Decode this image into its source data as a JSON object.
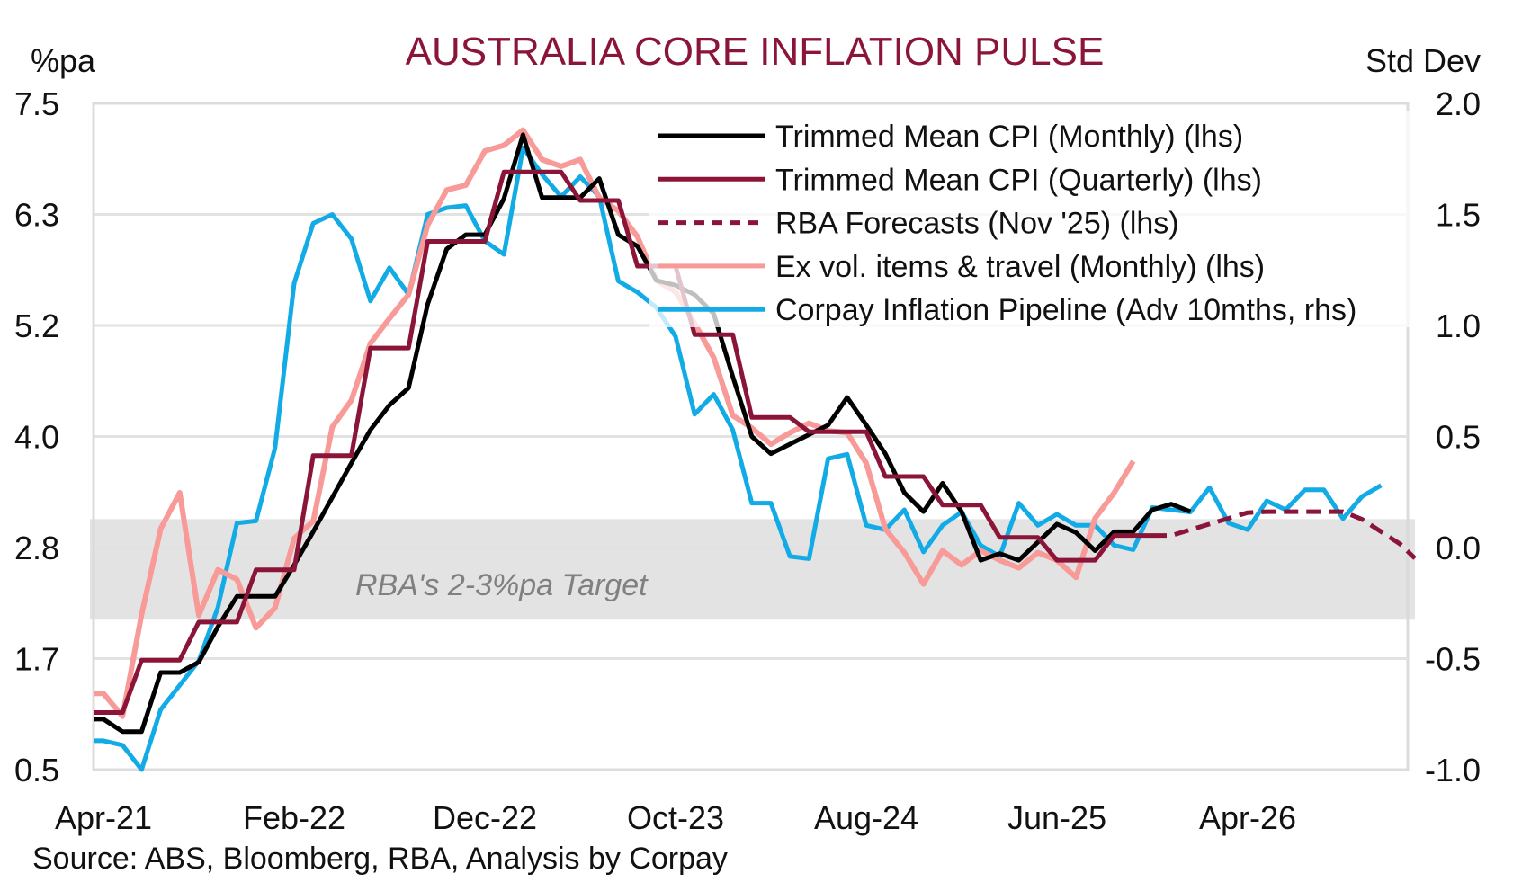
{
  "chart_data": {
    "type": "line",
    "title": "AUSTRALIA CORE INFLATION PULSE",
    "ylabel_left": "%pa",
    "ylabel_right": "Std Dev",
    "source": "Source: ABS, Bloomberg, RBA, Analysis by Corpay",
    "band_label": "RBA's 2-3%pa Target",
    "band": {
      "from": 2.0,
      "to": 3.0,
      "axis": "lhs"
    },
    "ylim_left": [
      0.5,
      7.5
    ],
    "ylim_right": [
      -1.0,
      2.0
    ],
    "yticks_left": [
      "7.5",
      "6.3",
      "5.2",
      "4.0",
      "2.8",
      "1.7",
      "0.5"
    ],
    "yticks_right": [
      "2.0",
      "1.5",
      "1.0",
      "0.5",
      "0.0",
      "-0.5",
      "-1.0"
    ],
    "x_start": "Apr-21",
    "x_frequency": "monthly",
    "x_count": 69,
    "xticks": [
      {
        "label": "Apr-21",
        "index": 0
      },
      {
        "label": "Feb-22",
        "index": 10
      },
      {
        "label": "Dec-22",
        "index": 20
      },
      {
        "label": "Oct-23",
        "index": 30
      },
      {
        "label": "Aug-24",
        "index": 40
      },
      {
        "label": "Jun-25",
        "index": 50
      },
      {
        "label": "Apr-26",
        "index": 60
      }
    ],
    "grid": true,
    "legend_position": "top-right",
    "series": [
      {
        "name": "Trimmed Mean CPI (Monthly) (lhs)",
        "axis": "lhs",
        "color": "#000000",
        "style": "solid",
        "start_index": 0,
        "values": [
          1.03,
          0.9,
          0.9,
          1.52,
          1.52,
          1.63,
          2.0,
          2.32,
          2.32,
          2.32,
          2.65,
          3.0,
          3.36,
          3.72,
          4.07,
          4.33,
          4.51,
          5.39,
          5.97,
          6.12,
          6.12,
          6.5,
          7.17,
          6.51,
          6.51,
          6.51,
          6.71,
          6.12,
          6.0,
          5.64,
          5.59,
          5.49,
          5.29,
          4.63,
          4.0,
          3.82,
          3.92,
          4.02,
          4.12,
          4.41,
          4.12,
          3.82,
          3.41,
          3.21,
          3.51,
          3.21,
          2.7,
          2.77,
          2.7,
          2.89,
          3.08,
          2.99,
          2.8,
          3.0,
          3.0,
          3.23,
          3.29,
          3.21
        ]
      },
      {
        "name": "Trimmed Mean CPI (Quarterly) (lhs)",
        "axis": "lhs",
        "color": "#8B1538",
        "style": "solid",
        "start_index": 0,
        "values": [
          1.1,
          1.1,
          1.65,
          1.65,
          1.65,
          2.05,
          2.05,
          2.05,
          2.6,
          2.6,
          2.6,
          3.8,
          3.8,
          3.8,
          4.93,
          4.93,
          4.93,
          6.05,
          6.05,
          6.05,
          6.05,
          6.78,
          6.78,
          6.78,
          6.78,
          6.48,
          6.48,
          6.48,
          5.79,
          5.79,
          5.79,
          5.07,
          5.07,
          5.07,
          4.2,
          4.2,
          4.2,
          4.05,
          4.05,
          4.05,
          4.05,
          3.58,
          3.58,
          3.58,
          3.28,
          3.28,
          3.28,
          2.94,
          2.94,
          2.94,
          2.7,
          2.7,
          2.7,
          2.96,
          2.96,
          2.96
        ]
      },
      {
        "name": "RBA Forecasts (Nov '25) (lhs)",
        "axis": "lhs",
        "color": "#8B1538",
        "style": "dashed",
        "start_index": 55,
        "values": [
          2.96,
          2.96,
          3.02,
          3.08,
          3.14,
          3.2,
          3.21,
          3.21,
          3.21,
          3.21,
          3.21,
          3.13,
          3.0,
          2.87
        ]
      },
      {
        "name": "Ex vol. items & travel (Monthly) (lhs)",
        "axis": "lhs",
        "color": "#F79A98",
        "style": "solid",
        "start_index": 0,
        "values": [
          1.3,
          1.06,
          2.13,
          3.03,
          3.41,
          2.12,
          2.6,
          2.5,
          1.99,
          2.2,
          2.93,
          3.11,
          4.1,
          4.38,
          4.98,
          5.24,
          5.49,
          6.22,
          6.59,
          6.64,
          7.0,
          7.06,
          7.22,
          6.91,
          6.84,
          6.91,
          6.51,
          6.37,
          6.1,
          5.64,
          5.52,
          5.19,
          4.83,
          4.22,
          4.09,
          3.92,
          4.04,
          4.14,
          4.06,
          4.04,
          3.72,
          3.03,
          2.78,
          2.45,
          2.8,
          2.65,
          2.8,
          2.7,
          2.62,
          2.78,
          2.7,
          2.52,
          3.14,
          3.41,
          3.74
        ]
      },
      {
        "name": "Corpay Inflation Pipeline (Adv 10mths, rhs)",
        "axis": "rhs",
        "color": "#12ABE6",
        "style": "solid",
        "start_index": 0,
        "values": [
          -0.87,
          -0.89,
          -1.0,
          -0.73,
          -0.62,
          -0.51,
          -0.27,
          0.11,
          0.12,
          0.45,
          1.19,
          1.46,
          1.5,
          1.39,
          1.11,
          1.26,
          1.14,
          1.5,
          1.53,
          1.54,
          1.38,
          1.32,
          1.8,
          1.68,
          1.58,
          1.67,
          1.58,
          1.2,
          1.15,
          1.08,
          0.95,
          0.6,
          0.69,
          0.53,
          0.2,
          0.2,
          -0.04,
          -0.05,
          0.4,
          0.42,
          0.1,
          0.08,
          0.17,
          -0.02,
          0.1,
          0.16,
          0.01,
          -0.04,
          0.2,
          0.1,
          0.15,
          0.1,
          0.1,
          0.01,
          -0.01,
          0.18,
          0.17,
          0.16,
          0.27,
          0.11,
          0.08,
          0.21,
          0.17,
          0.26,
          0.26,
          0.13,
          0.23,
          0.28
        ]
      }
    ]
  }
}
